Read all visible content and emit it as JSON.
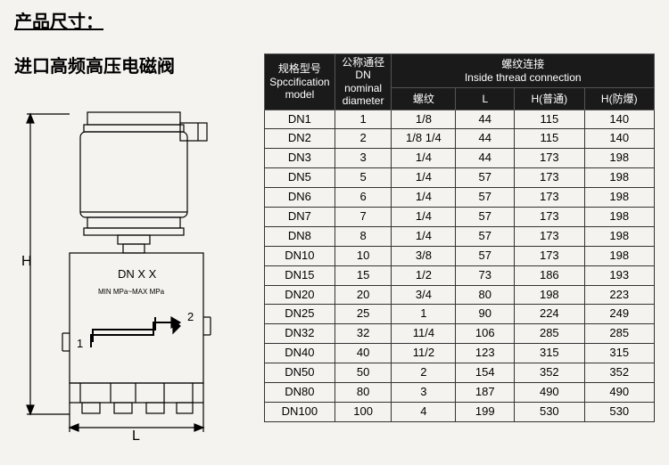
{
  "title": "产品尺寸：",
  "subtitle": "进口高频高压电磁阀",
  "diagram": {
    "label_dnxx": "DN X X",
    "label_range": "MIN  MPa~MAX  MPa",
    "label_1": "1",
    "label_2": "2",
    "label_H": "H",
    "label_L": "L",
    "stroke": "#000000",
    "fill_bg": "#f5f3ef"
  },
  "table": {
    "header_bg": "#1a1a1a",
    "header_fg": "#ffffff",
    "cell_bg": "#f5f3ef",
    "cell_fg": "#000000",
    "border_color": "#333333",
    "head": {
      "model_cn": "规格型号",
      "model_en": "Spccification model",
      "dn_cn": "公称通径 DN",
      "dn_en": "nominal diameter",
      "thread_cn": "螺纹连接",
      "thread_en": "Inside thread connection",
      "sub_thread": "螺纹",
      "sub_L": "L",
      "sub_H1": "H(普通)",
      "sub_H2": "H(防爆)"
    },
    "rows": [
      {
        "model": "DN1",
        "dn": "1",
        "thread": "1/8",
        "L": "44",
        "H1": "115",
        "H2": "140"
      },
      {
        "model": "DN2",
        "dn": "2",
        "thread": "1/8 1/4",
        "L": "44",
        "H1": "115",
        "H2": "140"
      },
      {
        "model": "DN3",
        "dn": "3",
        "thread": "1/4",
        "L": "44",
        "H1": "173",
        "H2": "198"
      },
      {
        "model": "DN5",
        "dn": "5",
        "thread": "1/4",
        "L": "57",
        "H1": "173",
        "H2": "198"
      },
      {
        "model": "DN6",
        "dn": "6",
        "thread": "1/4",
        "L": "57",
        "H1": "173",
        "H2": "198"
      },
      {
        "model": "DN7",
        "dn": "7",
        "thread": "1/4",
        "L": "57",
        "H1": "173",
        "H2": "198"
      },
      {
        "model": "DN8",
        "dn": "8",
        "thread": "1/4",
        "L": "57",
        "H1": "173",
        "H2": "198"
      },
      {
        "model": "DN10",
        "dn": "10",
        "thread": "3/8",
        "L": "57",
        "H1": "173",
        "H2": "198"
      },
      {
        "model": "DN15",
        "dn": "15",
        "thread": "1/2",
        "L": "73",
        "H1": "186",
        "H2": "193"
      },
      {
        "model": "DN20",
        "dn": "20",
        "thread": "3/4",
        "L": "80",
        "H1": "198",
        "H2": "223"
      },
      {
        "model": "DN25",
        "dn": "25",
        "thread": "1",
        "L": "90",
        "H1": "224",
        "H2": "249"
      },
      {
        "model": "DN32",
        "dn": "32",
        "thread": "11/4",
        "L": "106",
        "H1": "285",
        "H2": "285"
      },
      {
        "model": "DN40",
        "dn": "40",
        "thread": "11/2",
        "L": "123",
        "H1": "315",
        "H2": "315"
      },
      {
        "model": "DN50",
        "dn": "50",
        "thread": "2",
        "L": "154",
        "H1": "352",
        "H2": "352"
      },
      {
        "model": "DN80",
        "dn": "80",
        "thread": "3",
        "L": "187",
        "H1": "490",
        "H2": "490"
      },
      {
        "model": "DN100",
        "dn": "100",
        "thread": "4",
        "L": "199",
        "H1": "530",
        "H2": "530"
      }
    ]
  }
}
